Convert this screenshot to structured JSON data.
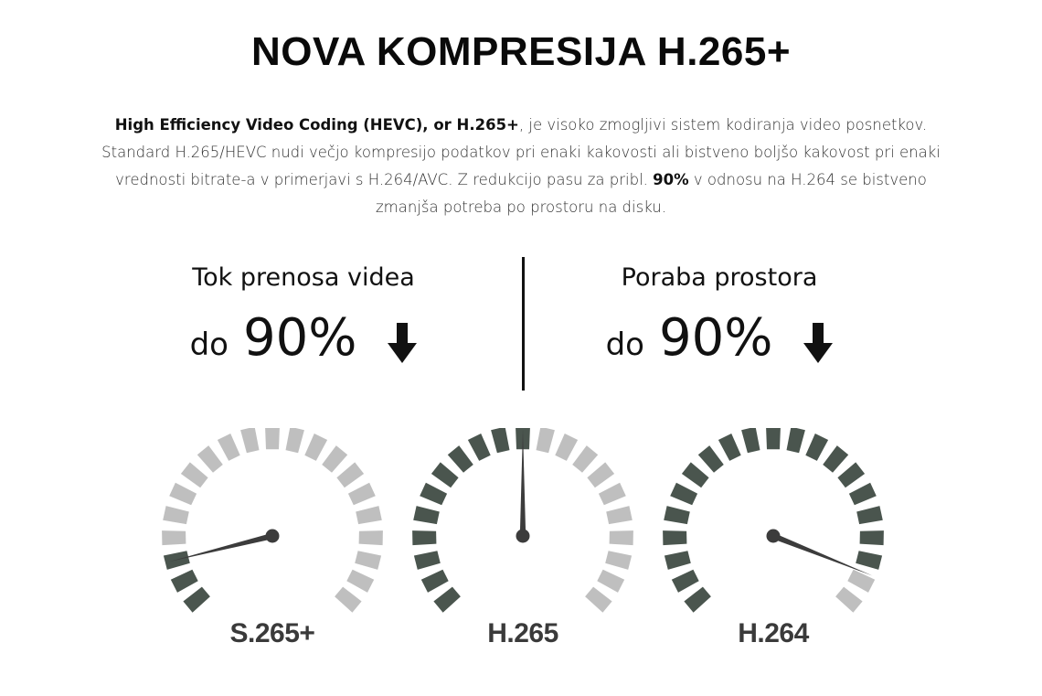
{
  "header": {
    "title": "NOVA KOMPRESIJA H.265+"
  },
  "intro": {
    "bold_lead": "High Efficiency Video Coding (HEVC), or H.265+",
    "text_1": ", je visoko zmogljivi sistem kodiranja video posnetkov. Standard H.265/HEVC nudi večjo kompresijo podatkov pri enaki kakovosti ali bistveno boljšo kakovost pri enaki vrednosti bitrate-a v primerjavi s H.264/AVC. Z redukcijo pasu za pribl. ",
    "bold_percent": "90%",
    "text_2": " v odnosu na H.264 se bistveno zmanjša potreba po prostoru na disku."
  },
  "stats": [
    {
      "label": "Tok prenosa videa",
      "prefix": "do",
      "value": "90%",
      "icon": "arrow-down-icon"
    },
    {
      "label": "Poraba prostora",
      "prefix": "do",
      "value": "90%",
      "icon": "arrow-down-icon"
    }
  ],
  "gauges": [
    {
      "label": "S.265+",
      "level": 0.1
    },
    {
      "label": "H.265",
      "level": 0.5
    },
    {
      "label": "H.264",
      "level": 0.93
    }
  ],
  "colors": {
    "active": "#4a554e",
    "inactive": "#bfbfbf",
    "needle": "#3c3c3c",
    "text": "#111111"
  }
}
